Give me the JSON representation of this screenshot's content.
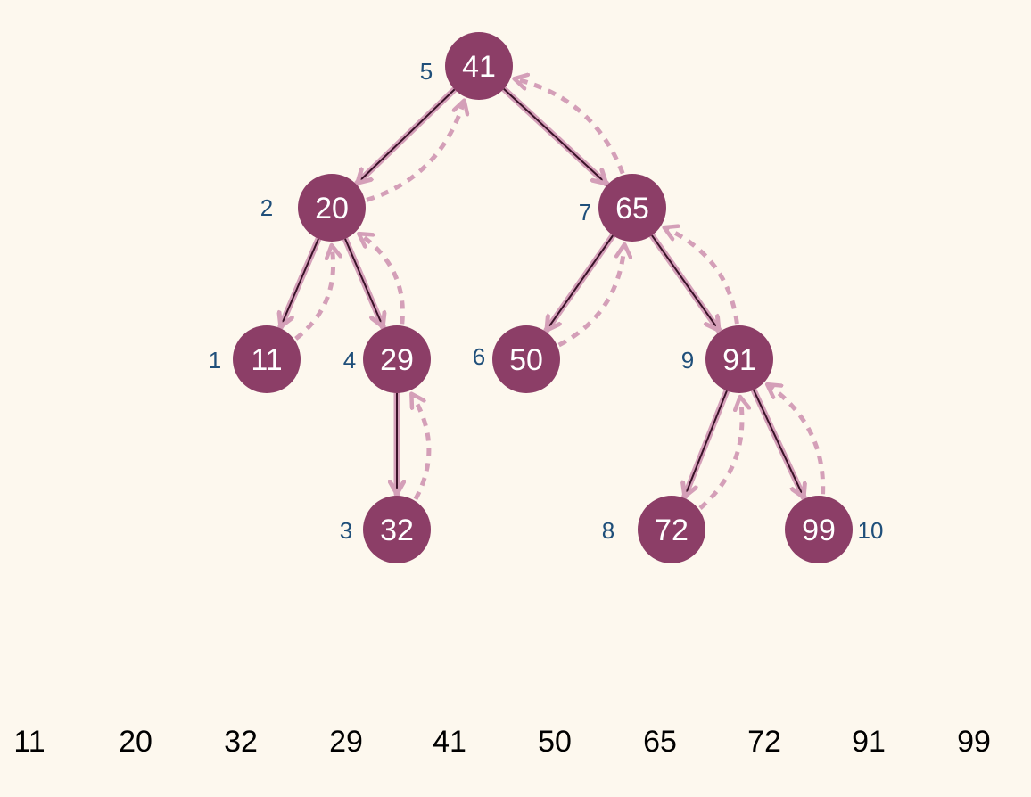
{
  "colors": {
    "background": "#fdf8ee",
    "node_fill": "#8c3e67",
    "node_text": "#ffffff",
    "edge": "#3a1228",
    "arrow": "#d49fb8",
    "order_label": "#1f4f7a",
    "sequence_text": "#000000"
  },
  "nodes": [
    {
      "id": "n41",
      "value": "41",
      "order": "5"
    },
    {
      "id": "n20",
      "value": "20",
      "order": "2"
    },
    {
      "id": "n65",
      "value": "65",
      "order": "7"
    },
    {
      "id": "n11",
      "value": "11",
      "order": "1"
    },
    {
      "id": "n29",
      "value": "29",
      "order": "4"
    },
    {
      "id": "n50",
      "value": "50",
      "order": "6"
    },
    {
      "id": "n91",
      "value": "91",
      "order": "9"
    },
    {
      "id": "n32",
      "value": "32",
      "order": "3"
    },
    {
      "id": "n72",
      "value": "72",
      "order": "8"
    },
    {
      "id": "n99",
      "value": "99",
      "order": "10"
    }
  ],
  "edges": [
    {
      "from": "n41",
      "to": "n20"
    },
    {
      "from": "n41",
      "to": "n65"
    },
    {
      "from": "n20",
      "to": "n11"
    },
    {
      "from": "n20",
      "to": "n29"
    },
    {
      "from": "n29",
      "to": "n32"
    },
    {
      "from": "n65",
      "to": "n50"
    },
    {
      "from": "n65",
      "to": "n91"
    },
    {
      "from": "n91",
      "to": "n72"
    },
    {
      "from": "n91",
      "to": "n99"
    }
  ],
  "return_arrows": [
    {
      "from": "n20",
      "to": "n41"
    },
    {
      "from": "n65",
      "to": "n41"
    },
    {
      "from": "n11",
      "to": "n20"
    },
    {
      "from": "n29",
      "to": "n20"
    },
    {
      "from": "n32",
      "to": "n29"
    },
    {
      "from": "n50",
      "to": "n65"
    },
    {
      "from": "n91",
      "to": "n65"
    },
    {
      "from": "n72",
      "to": "n91"
    },
    {
      "from": "n99",
      "to": "n91"
    }
  ],
  "sequence": [
    "11",
    "20",
    "32",
    "29",
    "41",
    "50",
    "65",
    "72",
    "91",
    "99"
  ]
}
